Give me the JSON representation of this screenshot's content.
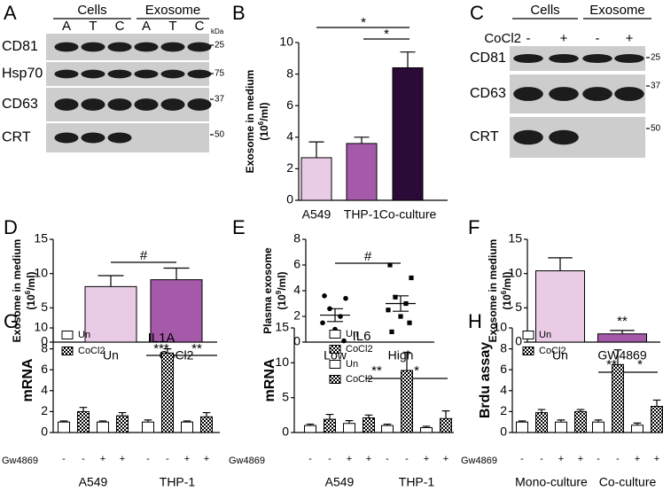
{
  "blots": [
    {
      "panel": "A",
      "groups": [
        "Cells",
        "Exosome"
      ],
      "lanes": [
        "A",
        "T",
        "C",
        "A",
        "T",
        "C"
      ],
      "unit": "kDa",
      "rows": [
        {
          "label": "CD81",
          "marker": "25"
        },
        {
          "label": "Hsp70",
          "marker": "75"
        },
        {
          "label": "CD63",
          "marker": "37"
        },
        {
          "label": "CRT",
          "marker": "50"
        }
      ]
    },
    {
      "panel": "C",
      "groups": [
        "Cells",
        "Exosome"
      ],
      "treatment_label": "CoCl2",
      "lanes": [
        "-",
        "+",
        "-",
        "+"
      ],
      "rows": [
        {
          "label": "CD81",
          "marker": "25"
        },
        {
          "label": "CD63",
          "marker": "37"
        },
        {
          "label": "CRT",
          "marker": "50"
        }
      ]
    }
  ],
  "chart_data": [
    {
      "type": "bar",
      "panel": "B",
      "categories": [
        "A549",
        "THP-1",
        "Co-culture"
      ],
      "values": [
        2.7,
        3.6,
        8.4
      ],
      "errors": [
        1.0,
        0.4,
        1.0
      ],
      "colors": [
        "#eacbe6",
        "#a45aa9",
        "#2b0a37"
      ],
      "ylabel": "Exosome in medium",
      "yunit": [
        "(10",
        "6",
        "/ml)"
      ],
      "ylim": [
        0,
        10
      ],
      "yticks": [
        0,
        2,
        4,
        6,
        8,
        10
      ],
      "annotations": [
        "*",
        "*"
      ]
    },
    {
      "type": "bar",
      "panel": "D",
      "categories": [
        "Un",
        "CoCl2"
      ],
      "values": [
        8.1,
        9.1
      ],
      "errors": [
        1.6,
        1.7
      ],
      "colors": [
        "#eacbe6",
        "#a45aa9"
      ],
      "ylabel": "Exosome in medium",
      "yunit": [
        "(10",
        "6",
        "/ml)"
      ],
      "ylim": [
        0,
        15
      ],
      "yticks": [
        0,
        5,
        10,
        15
      ],
      "annotations": [
        "#"
      ]
    },
    {
      "type": "scatter",
      "panel": "E",
      "categories": [
        "Low",
        "High"
      ],
      "points": [
        [
          3.6,
          3.4,
          2.6,
          2.0,
          1.5,
          1.0,
          0.1
        ],
        [
          6.0,
          5.0,
          3.5,
          3.0,
          2.5,
          2.0,
          1.5,
          0.8
        ]
      ],
      "means": [
        2.1,
        3.0
      ],
      "errors": [
        0.5,
        0.6
      ],
      "markers": [
        "circle",
        "square"
      ],
      "color": "#000000",
      "ylabel": "Plasma exosome",
      "yunit": [
        "(10",
        "9",
        "/ml)"
      ],
      "ylim": [
        0,
        8
      ],
      "yticks": [
        0,
        2,
        4,
        6,
        8
      ],
      "annotations": [
        "#"
      ]
    },
    {
      "type": "bar",
      "panel": "F",
      "categories": [
        "Un",
        "GW4869"
      ],
      "values": [
        10.4,
        1.2
      ],
      "errors": [
        1.9,
        0.5
      ],
      "colors": [
        "#eacbe6",
        "#a45aa9"
      ],
      "ylabel": "Exosome in medium",
      "yunit": [
        "(10",
        "6",
        "/ml)"
      ],
      "ylim": [
        0,
        15
      ],
      "yticks": [
        0,
        5,
        10,
        15
      ],
      "annotations": [
        "**"
      ]
    },
    {
      "type": "grouped_bar",
      "panel": "G",
      "title": "IL1A",
      "ylabel": "mRNA",
      "categories": [
        "A549",
        "THP-1"
      ],
      "treatment_label": "Gw4869",
      "ylim": [
        0,
        10
      ],
      "yticks": [
        0,
        2,
        4,
        6,
        8,
        10
      ],
      "series": [
        {
          "name": "Un",
          "color": "#ffffff",
          "treatment": "-",
          "values": [
            1.0,
            1.0
          ],
          "errors": [
            0.1,
            0.2
          ]
        },
        {
          "name": "CoCl2",
          "color": "#000000",
          "pattern": "checker",
          "treatment": "-",
          "values": [
            2.0,
            7.6
          ],
          "errors": [
            0.4,
            0.4
          ]
        },
        {
          "color": "#ffffff",
          "treatment": "+",
          "values": [
            1.0,
            1.0
          ],
          "errors": [
            0.1,
            0.1
          ]
        },
        {
          "color": "#000000",
          "pattern": "checker",
          "treatment": "+",
          "values": [
            1.6,
            1.5
          ],
          "errors": [
            0.3,
            0.4
          ]
        }
      ],
      "annotations": [
        "***",
        "**"
      ]
    },
    {
      "type": "grouped_bar",
      "title": "IL6",
      "ylabel": "mRNA",
      "categories": [
        "A549",
        "THP-1"
      ],
      "treatment_label": "Gw4869",
      "ylim": [
        0,
        15
      ],
      "yticks": [
        0,
        5,
        10,
        15
      ],
      "series": [
        {
          "name": "Un",
          "color": "#ffffff",
          "treatment": "-",
          "values": [
            1.0,
            1.0
          ],
          "errors": [
            0.2,
            0.2
          ]
        },
        {
          "name": "CoCl2",
          "color": "#000000",
          "pattern": "checker",
          "treatment": "-",
          "values": [
            1.9,
            8.9
          ],
          "errors": [
            0.7,
            2.6
          ]
        },
        {
          "name": "Un",
          "color": "#ffffff",
          "treatment": "+",
          "values": [
            1.3,
            0.7
          ],
          "errors": [
            0.4,
            0.2
          ]
        },
        {
          "name": "CoCl2",
          "color": "#000000",
          "pattern": "checker",
          "treatment": "+",
          "values": [
            2.1,
            2.0
          ],
          "errors": [
            0.4,
            1.1
          ]
        }
      ],
      "annotations": [
        "**",
        "*"
      ]
    },
    {
      "type": "grouped_bar",
      "panel": "H",
      "ylabel": "Brdu assay",
      "categories": [
        "Mono-culture",
        "Co-culture"
      ],
      "treatment_label": "Gw4869",
      "ylim": [
        0,
        10
      ],
      "yticks": [
        0,
        2,
        4,
        6,
        8,
        10
      ],
      "series": [
        {
          "name": "Un",
          "color": "#ffffff",
          "treatment": "-",
          "values": [
            1.0,
            1.0
          ],
          "errors": [
            0.1,
            0.2
          ]
        },
        {
          "name": "CoCl2",
          "color": "#000000",
          "pattern": "checker",
          "treatment": "-",
          "values": [
            1.9,
            6.5
          ],
          "errors": [
            0.3,
            1.4
          ]
        },
        {
          "color": "#ffffff",
          "treatment": "+",
          "values": [
            1.0,
            0.7
          ],
          "errors": [
            0.2,
            0.2
          ]
        },
        {
          "color": "#000000",
          "pattern": "checker",
          "treatment": "+",
          "values": [
            2.0,
            2.5
          ],
          "errors": [
            0.2,
            0.6
          ]
        }
      ],
      "annotations": [
        "**",
        "*"
      ]
    }
  ]
}
